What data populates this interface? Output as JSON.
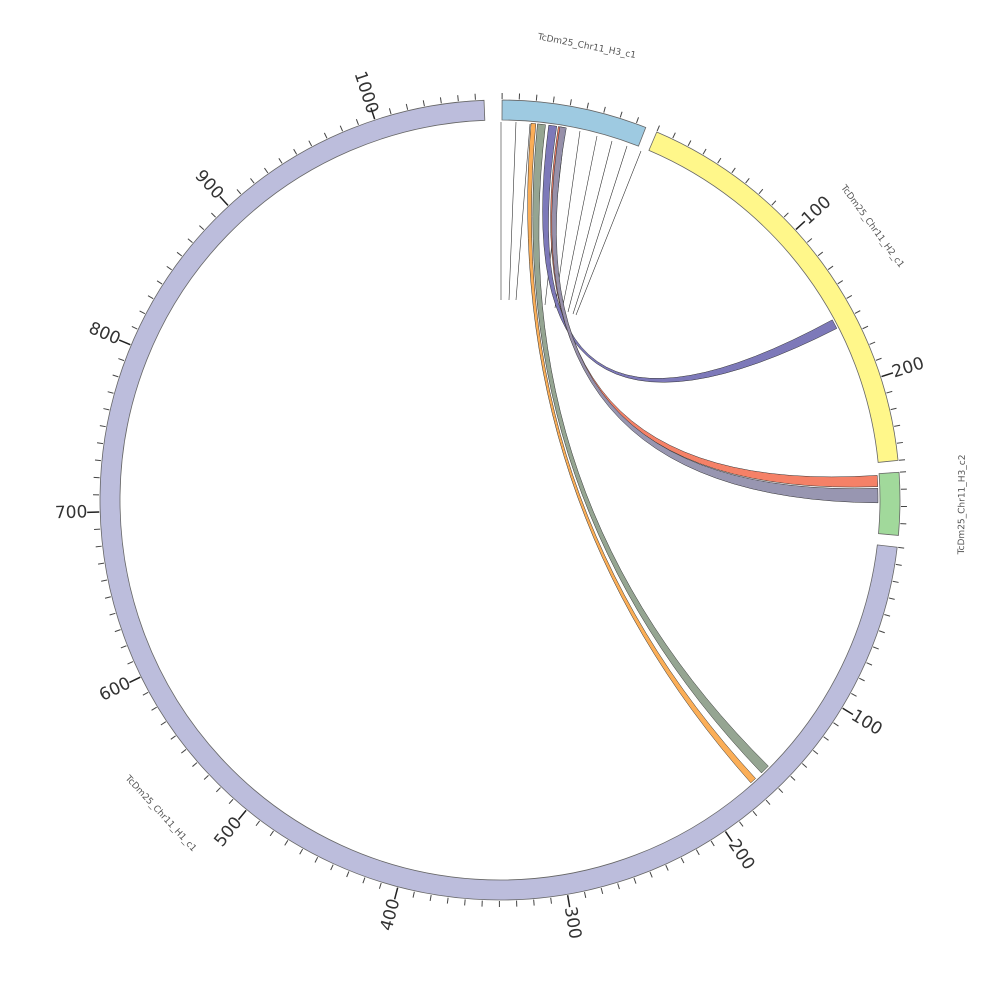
{
  "chart_data": {
    "type": "circos",
    "minor_tick_step": 10,
    "chromosomes": [
      {
        "name": "TcDm25_Chr11_H3_c1",
        "length": 86,
        "color": "#9ecae1",
        "ticks": []
      },
      {
        "name": "TcDm25_Chr11_H2_c1",
        "length": 250,
        "color": "#fff78a",
        "ticks": [
          100,
          200
        ]
      },
      {
        "name": "TcDm25_Chr11_H3_c2",
        "length": 37,
        "color": "#a1d99b",
        "ticks": []
      },
      {
        "name": "TcDm25_Chr11_H1_c1",
        "length": 1065,
        "color": "#bcbddc",
        "ticks": [
          100,
          200,
          300,
          400,
          500,
          600,
          700,
          800,
          900,
          1000
        ]
      }
    ],
    "links": [
      {
        "source": "TcDm25_Chr11_H3_c1",
        "source_start": 29,
        "source_end": 34,
        "target": "TcDm25_Chr11_H2_c1",
        "target_start": 157,
        "target_end": 163,
        "color": "#7672b5"
      },
      {
        "source": "TcDm25_Chr11_H3_c1",
        "source_start": 22,
        "source_end": 27,
        "target": "TcDm25_Chr11_H1_c1",
        "target_start": 155,
        "target_end": 161,
        "color": "#8fa08c"
      },
      {
        "source": "TcDm25_Chr11_H3_c1",
        "source_start": 18,
        "source_end": 21,
        "target": "TcDm25_Chr11_H1_c1",
        "target_start": 166,
        "target_end": 170,
        "color": "#fbaa4e"
      },
      {
        "source": "TcDm25_Chr11_H3_c1",
        "source_start": 35,
        "source_end": 39,
        "target": "TcDm25_Chr11_H3_c2",
        "target_start": 1,
        "target_end": 8,
        "color": "#f47a5f"
      },
      {
        "source": "TcDm25_Chr11_H3_c1",
        "source_start": 36,
        "source_end": 40,
        "target": "TcDm25_Chr11_H3_c2",
        "target_start": 9,
        "target_end": 18,
        "color": "#9290ad"
      }
    ]
  }
}
